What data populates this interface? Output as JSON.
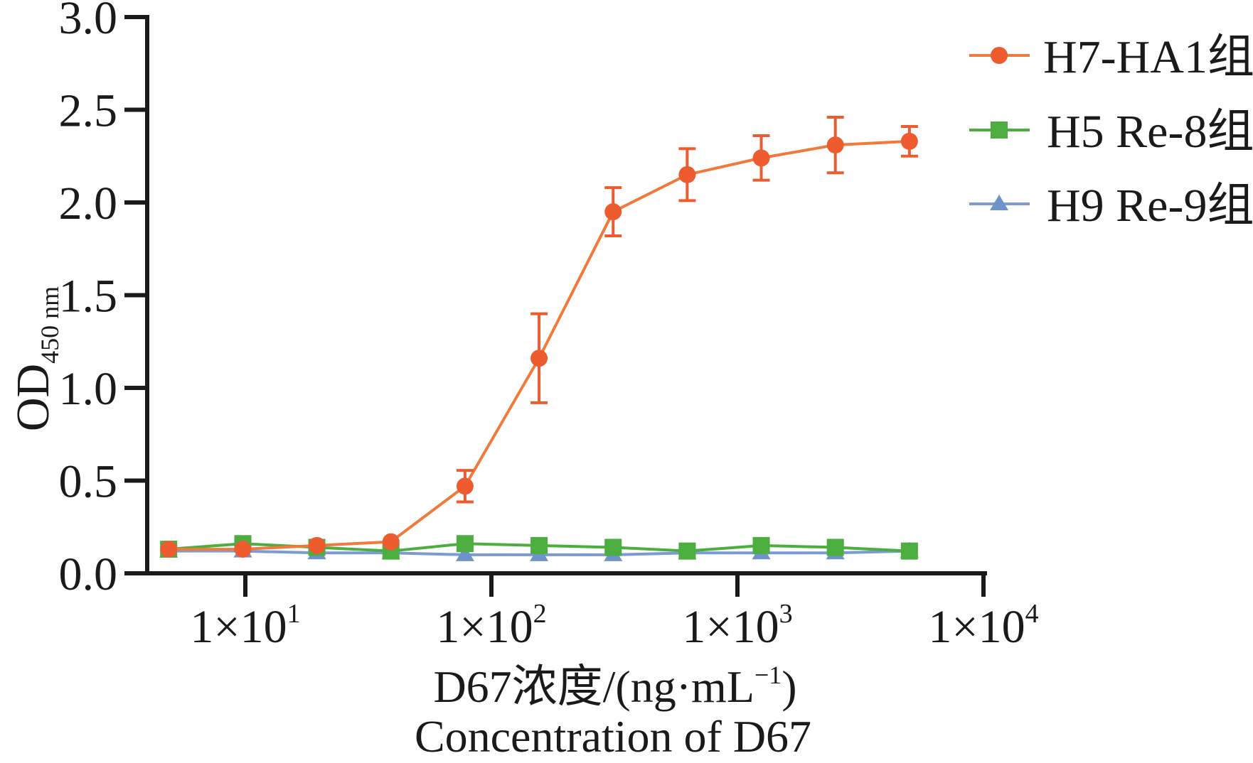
{
  "chart_data": {
    "type": "line",
    "title": "",
    "xscale": "log",
    "xlim": [
      3.5,
      10000
    ],
    "ylim": [
      0,
      3.0
    ],
    "grid": false,
    "legend_position": "top-right",
    "ylabel": {
      "main": "OD",
      "subscript": "450 nm"
    },
    "xlabel_lines": [
      "D67浓度/(ng·mL⁻¹)",
      "Concentration of D67"
    ],
    "xlabel_parts": {
      "prefix": "D67浓度/(ng·mL",
      "superscript": "−1",
      "suffix": ")"
    },
    "yticks": [
      {
        "value": 0.0,
        "label": "0.0"
      },
      {
        "value": 0.5,
        "label": "0.5"
      },
      {
        "value": 1.0,
        "label": "1.0"
      },
      {
        "value": 1.5,
        "label": "1.5"
      },
      {
        "value": 2.0,
        "label": "2.0"
      },
      {
        "value": 2.5,
        "label": "2.5"
      },
      {
        "value": 3.0,
        "label": "3.0"
      }
    ],
    "xticks": [
      {
        "value": 10,
        "mantissa": "1×10",
        "exponent": "1"
      },
      {
        "value": 100,
        "mantissa": "1×10",
        "exponent": "2"
      },
      {
        "value": 1000,
        "mantissa": "1×10",
        "exponent": "3"
      },
      {
        "value": 10000,
        "mantissa": "1×10",
        "exponent": "4"
      }
    ],
    "x": [
      4.88,
      9.77,
      19.53,
      39.06,
      78.13,
      156.25,
      312.5,
      625,
      1250,
      2500,
      5000
    ],
    "series": [
      {
        "name": "H7-HA1组",
        "marker": "circle",
        "color": "#EE5B2F",
        "line_color": "#F07A3C",
        "values": [
          0.13,
          0.13,
          0.15,
          0.17,
          0.47,
          1.16,
          1.95,
          2.15,
          2.24,
          2.31,
          2.33
        ],
        "errors": [
          0,
          0,
          0,
          0,
          0.085,
          0.24,
          0.13,
          0.14,
          0.12,
          0.15,
          0.08
        ]
      },
      {
        "name": "H5 Re-8组",
        "marker": "square",
        "color": "#4CAE3F",
        "line_color": "#4CAE3F",
        "values": [
          0.13,
          0.16,
          0.14,
          0.12,
          0.16,
          0.15,
          0.14,
          0.12,
          0.15,
          0.14,
          0.12
        ],
        "errors": []
      },
      {
        "name": "H9 Re-9组",
        "marker": "triangle",
        "color": "#6F92C8",
        "line_color": "#7C9BD0",
        "values": [
          0.12,
          0.12,
          0.11,
          0.11,
          0.1,
          0.1,
          0.1,
          0.11,
          0.11,
          0.11,
          0.12
        ],
        "errors": []
      }
    ]
  }
}
